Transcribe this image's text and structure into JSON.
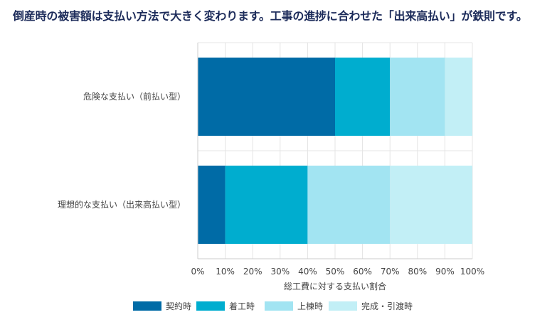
{
  "header": {
    "title": "倒産時の被害額は支払い方法で大きく変わります。工事の進捗に合わせた「出来高払い」が鉄則です。"
  },
  "chart_data": {
    "type": "bar",
    "orientation": "horizontal",
    "stacked": true,
    "title": "倒産時の被害額は支払い方法で大きく変わります。工事の進捗に合わせた「出来高払い」が鉄則です。",
    "categories": [
      "危険な支払い（前払い型）",
      "理想的な支払い（出来高払い型）"
    ],
    "series": [
      {
        "name": "契約時",
        "values": [
          50,
          10
        ],
        "color": "#006ba6"
      },
      {
        "name": "着工時",
        "values": [
          20,
          30
        ],
        "color": "#00adcf"
      },
      {
        "name": "上棟時",
        "values": [
          20,
          30
        ],
        "color": "#a2e4f2"
      },
      {
        "name": "完成・引渡時",
        "values": [
          10,
          30
        ],
        "color": "#c2eff6"
      }
    ],
    "xlabel": "総工費に対する支払い割合",
    "ylabel": "",
    "xlim": [
      0,
      100
    ],
    "xticks": [
      "0%",
      "10%",
      "20%",
      "30%",
      "40%",
      "50%",
      "60%",
      "70%",
      "80%",
      "90%",
      "100%"
    ],
    "grid": true,
    "legend": "bottom"
  }
}
